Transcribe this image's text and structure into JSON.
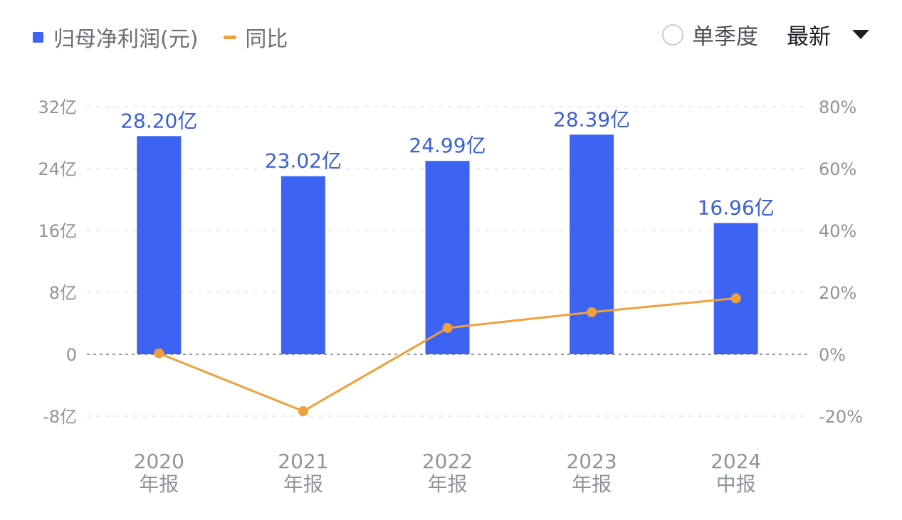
{
  "legend": {
    "bar_label": "归母净利润(元)",
    "line_label": "同比"
  },
  "controls": {
    "quarter_label": "单季度",
    "latest_label": "最新"
  },
  "colors": {
    "bar": "#3d63f2",
    "line": "#f0a03a",
    "data_label": "#3b5fd4",
    "axis_text": "#8e939c"
  },
  "chart_data": {
    "type": "bar",
    "categories": [
      [
        "2020",
        "年报"
      ],
      [
        "2021",
        "年报"
      ],
      [
        "2022",
        "年报"
      ],
      [
        "2023",
        "年报"
      ],
      [
        "2024",
        "中报"
      ]
    ],
    "series": [
      {
        "name": "归母净利润(元)",
        "type": "bar",
        "axis": "left",
        "values": [
          28.2,
          23.02,
          24.99,
          28.39,
          16.96
        ],
        "labels": [
          "28.20亿",
          "23.02亿",
          "24.99亿",
          "28.39亿",
          "16.96亿"
        ]
      },
      {
        "name": "同比",
        "type": "line",
        "axis": "right",
        "values": [
          0.3,
          -18.4,
          8.5,
          13.6,
          18.1
        ]
      }
    ],
    "y_left": {
      "ylim": [
        -8,
        32
      ],
      "ticks": [
        32,
        24,
        16,
        8,
        0,
        -8
      ],
      "tick_labels": [
        "32亿",
        "24亿",
        "16亿",
        "8亿",
        "0",
        "-8亿"
      ]
    },
    "y_right": {
      "ylim": [
        -20,
        80
      ],
      "ticks": [
        80,
        60,
        40,
        20,
        0,
        -20
      ],
      "tick_labels": [
        "80%",
        "60%",
        "40%",
        "20%",
        "0%",
        "-20%"
      ]
    },
    "grid": true
  }
}
